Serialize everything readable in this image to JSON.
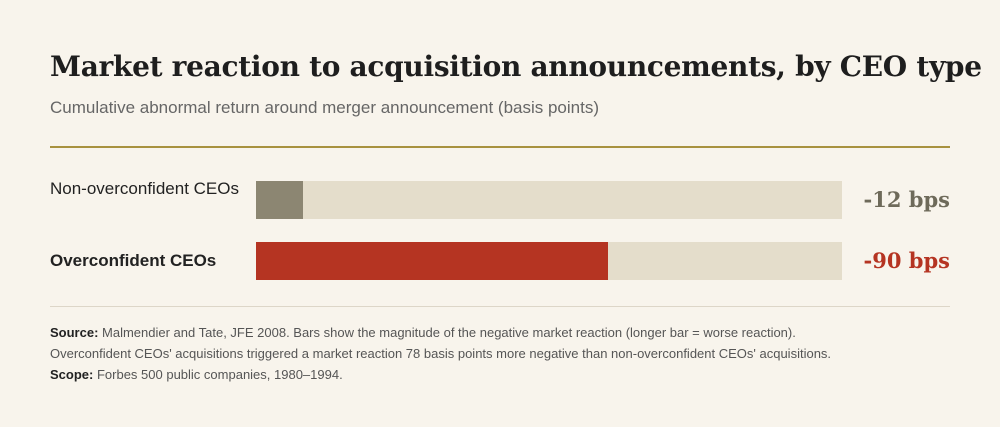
{
  "header": {
    "title": "Market reaction to acquisition announcements, by CEO type",
    "subtitle": "Cumulative abnormal return around merger announcement (basis points)"
  },
  "chart_data": {
    "type": "bar",
    "orientation": "horizontal",
    "categories": [
      "Non-overconfident CEOs",
      "Overconfident CEOs"
    ],
    "values": [
      -12,
      -90
    ],
    "value_labels": [
      "-12 bps",
      "-90 bps"
    ],
    "bar_scale_max_magnitude": 150,
    "colors": [
      "#8c8672",
      "#b53422"
    ],
    "track_color": "#e4ddcb",
    "title": "Market reaction to acquisition announcements, by CEO type",
    "subtitle": "Cumulative abnormal return around merger announcement (basis points)",
    "xlabel": "",
    "ylabel": "",
    "grid": false
  },
  "footer": {
    "source_label": "Source:",
    "source_text": "Malmendier and Tate, JFE 2008. Bars show the magnitude of the negative market reaction (longer bar = worse reaction).",
    "source_text_2": "Overconfident CEOs' acquisitions triggered a market reaction 78 basis points more negative than non-overconfident CEOs' acquisitions.",
    "scope_label": "Scope:",
    "scope_text": "Forbes 500 public companies, 1980–1994."
  }
}
